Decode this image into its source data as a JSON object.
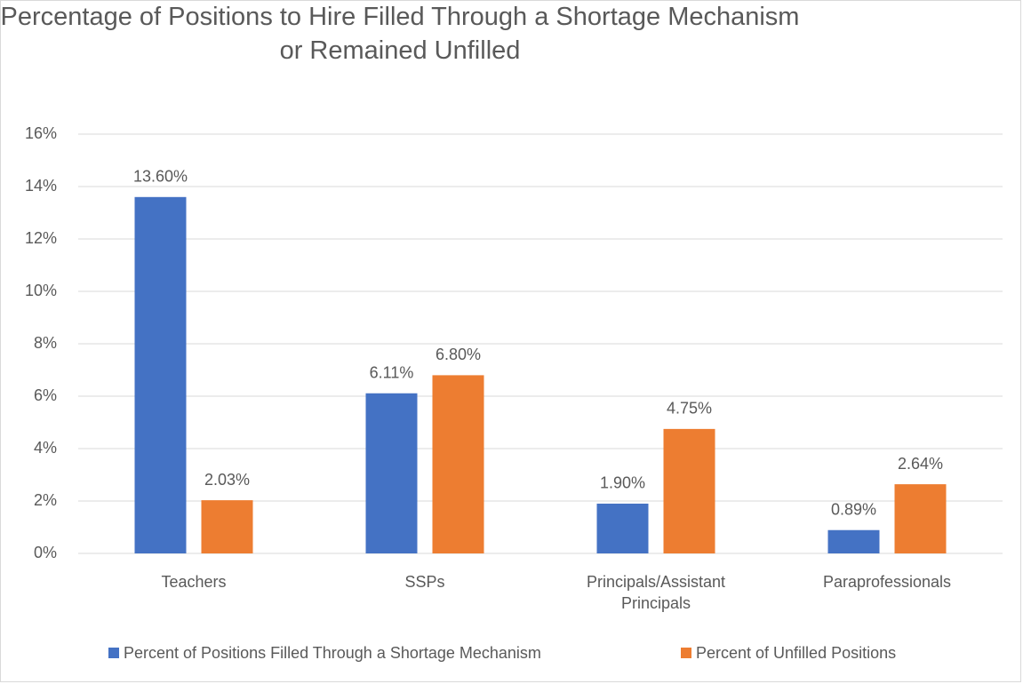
{
  "chart_data": {
    "type": "bar",
    "title": "Percentage of Positions to Hire Filled Through a Shortage Mechanism or Remained Unfilled",
    "categories": [
      "Teachers",
      "SSPs",
      "Principals/Assistant Principals",
      "Paraprofessionals"
    ],
    "series": [
      {
        "name": "Percent of Positions Filled Through a Shortage Mechanism",
        "color": "#4472c4",
        "values": [
          13.6,
          6.11,
          1.9,
          0.89
        ],
        "value_labels": [
          "13.60%",
          "6.11%",
          "1.90%",
          "0.89%"
        ]
      },
      {
        "name": "Percent of Unfilled Positions",
        "color": "#ed7d31",
        "values": [
          2.03,
          6.8,
          4.75,
          2.64
        ],
        "value_labels": [
          "2.03%",
          "6.80%",
          "4.75%",
          "2.64%"
        ]
      }
    ],
    "ylim": [
      0,
      16
    ],
    "yticks": [
      {
        "value": 0,
        "label": "0%"
      },
      {
        "value": 2,
        "label": "2%"
      },
      {
        "value": 4,
        "label": "4%"
      },
      {
        "value": 6,
        "label": "6%"
      },
      {
        "value": 8,
        "label": "8%"
      },
      {
        "value": 10,
        "label": "10%"
      },
      {
        "value": 12,
        "label": "12%"
      },
      {
        "value": 14,
        "label": "14%"
      },
      {
        "value": 16,
        "label": "16%"
      }
    ],
    "grid": true,
    "legend": "bottom"
  }
}
